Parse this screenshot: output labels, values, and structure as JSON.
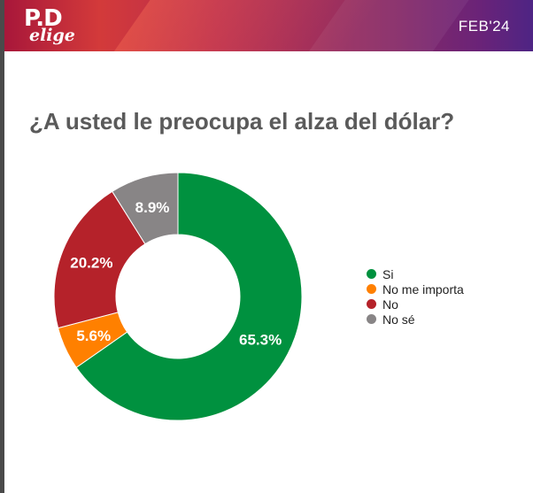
{
  "header": {
    "logo_top": "P.D",
    "logo_bottom": "elige",
    "date": "FEB'24"
  },
  "chart_data": {
    "type": "pie",
    "title": "¿A usted le preocupa el alza del dólar?",
    "categories": [
      "Si",
      "No me importa",
      "No",
      "No sé"
    ],
    "values": [
      65.3,
      5.6,
      20.2,
      8.9
    ],
    "labels": [
      "65.3%",
      "5.6%",
      "20.2%",
      "8.9%"
    ],
    "colors": [
      "#00913f",
      "#ff8000",
      "#b5222a",
      "#888586"
    ],
    "donut": true,
    "legend": "right"
  }
}
